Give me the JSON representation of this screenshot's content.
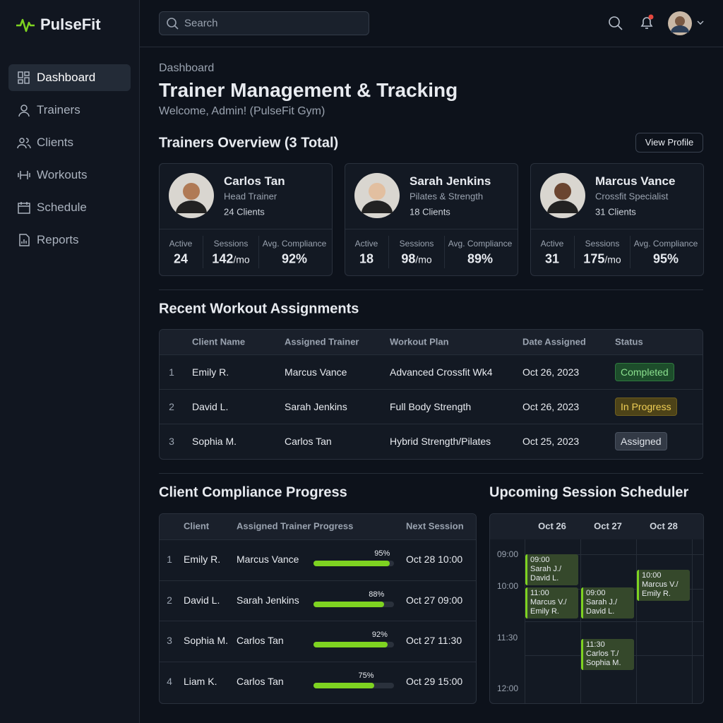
{
  "brand": "PulseFit",
  "search_placeholder": "Search",
  "nav": [
    "Dashboard",
    "Trainers",
    "Clients",
    "Workouts",
    "Schedule",
    "Reports"
  ],
  "header": {
    "breadcrumb": "Dashboard",
    "title": "Trainer Management & Tracking",
    "welcome": "Welcome, Admin! (PulseFit Gym)"
  },
  "trainers_overview": {
    "title": "Trainers Overview (3 Total)",
    "button": "View Profile",
    "stat_labels": [
      "Active",
      "Sessions",
      "Avg. Compliance"
    ],
    "cards": [
      {
        "name": "Carlos Tan",
        "role": "Head Trainer",
        "clients": "24 Clients",
        "active": 24,
        "sessions": 142,
        "sessions_unit": "/mo",
        "compliance": "92%"
      },
      {
        "name": "Sarah Jenkins",
        "role": "Pilates & Strength",
        "clients": "18 Clients",
        "active": 18,
        "sessions": 98,
        "sessions_unit": "/mo",
        "compliance": "89%"
      },
      {
        "name": "Marcus Vance",
        "role": "Crossfit Specialist",
        "clients": "31 Clients",
        "active": 31,
        "sessions": 175,
        "sessions_unit": "/mo",
        "compliance": "95%"
      }
    ]
  },
  "assignments": {
    "title": "Recent Workout Assignments",
    "headers": [
      "Client Name",
      "Assigned Trainer",
      "Workout Plan",
      "Date Assigned",
      "Status"
    ],
    "rows": [
      [
        "1",
        "Emily R.",
        "Marcus Vance",
        "Advanced Crossfit Wk4",
        "Oct 26, 2023",
        "Completed"
      ],
      [
        "2",
        "David L.",
        "Sarah Jenkins",
        "Full Body Strength",
        "Oct 26, 2023",
        "In Progress"
      ],
      [
        "3",
        "Sophia M.",
        "Carlos Tan",
        "Hybrid Strength/Pilates",
        "Oct 25, 2023",
        "Assigned"
      ]
    ]
  },
  "compliance": {
    "title": "Client Compliance Progress",
    "headers": [
      "Client",
      "Assigned Trainer",
      "Progress",
      "Next Session"
    ],
    "rows": [
      {
        "index": "1",
        "client": "Emily R.",
        "trainer": "Marcus Vance",
        "progress": 95,
        "progress_label": "95%",
        "next": "Oct 28 10:00"
      },
      {
        "index": "2",
        "client": "David L.",
        "trainer": "Sarah Jenkins",
        "progress": 88,
        "progress_label": "88%",
        "next": "Oct 27 09:00"
      },
      {
        "index": "3",
        "client": "Sophia M.",
        "trainer": "Carlos Tan",
        "progress": 92,
        "progress_label": "92%",
        "next": "Oct 27 11:30"
      },
      {
        "index": "4",
        "client": "Liam K.",
        "trainer": "Carlos Tan",
        "progress": 75,
        "progress_label": "75%",
        "next": "Oct 29 15:00"
      }
    ]
  },
  "scheduler": {
    "title": "Upcoming Session Scheduler",
    "times": [
      "09:00",
      "10:00",
      "11:30",
      "12:00"
    ],
    "days": [
      {
        "label": "Oct 26",
        "events": [
          {
            "time": "09:00",
            "lines": [
              "Sarah J./",
              "David L."
            ]
          },
          {
            "time": "11:00",
            "lines": [
              "Marcus V./",
              "Emily R."
            ]
          }
        ]
      },
      {
        "label": "Oct 27",
        "events": [
          {
            "time": "09:00",
            "lines": [
              "Sarah J./",
              "David L."
            ]
          },
          {
            "time": "11:30",
            "lines": [
              "Carlos T./",
              "Sophia M."
            ]
          }
        ]
      },
      {
        "label": "Oct 28",
        "events": [
          {
            "time": "10:00",
            "lines": [
              "Marcus V./",
              "Emily R."
            ]
          }
        ]
      }
    ]
  }
}
